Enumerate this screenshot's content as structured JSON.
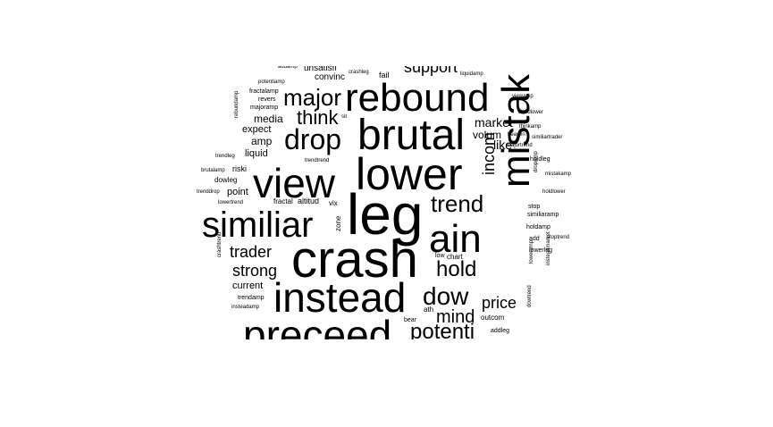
{
  "word_cloud": {
    "words": [
      {
        "text": "leg",
        "size": 64
      },
      {
        "text": "crash",
        "size": 58
      },
      {
        "text": "lower",
        "size": 50
      },
      {
        "text": "brutal",
        "size": 48
      },
      {
        "text": "view",
        "size": 46
      },
      {
        "text": "instead",
        "size": 46
      },
      {
        "text": "preceed",
        "size": 46
      },
      {
        "text": "rebound",
        "size": 44
      },
      {
        "text": "mistak",
        "size": 44
      },
      {
        "text": "ain",
        "size": 44
      },
      {
        "text": "similiar",
        "size": 40
      },
      {
        "text": "drop",
        "size": 32
      },
      {
        "text": "dow",
        "size": 28
      },
      {
        "text": "major",
        "size": 26
      },
      {
        "text": "trend",
        "size": 26
      },
      {
        "text": "hold",
        "size": 24
      },
      {
        "text": "potenti",
        "size": 24
      },
      {
        "text": "think",
        "size": 22
      },
      {
        "text": "mind",
        "size": 20
      },
      {
        "text": "incom",
        "size": 18
      },
      {
        "text": "trader",
        "size": 18
      },
      {
        "text": "strong",
        "size": 18
      },
      {
        "text": "price",
        "size": 18
      },
      {
        "text": "support",
        "size": 18
      },
      {
        "text": "market",
        "size": 14
      },
      {
        "text": "like",
        "size": 14
      },
      {
        "text": "volum",
        "size": 12
      },
      {
        "text": "media",
        "size": 12
      },
      {
        "text": "amp",
        "size": 12
      },
      {
        "text": "expect",
        "size": 11
      },
      {
        "text": "liquid",
        "size": 11
      },
      {
        "text": "point",
        "size": 11
      },
      {
        "text": "current",
        "size": 11
      },
      {
        "text": "convinc",
        "size": 10
      },
      {
        "text": "unsatisfi",
        "size": 10
      },
      {
        "text": "fail",
        "size": 9
      },
      {
        "text": "altitud",
        "size": 9
      },
      {
        "text": "riski",
        "size": 9
      },
      {
        "text": "dowleg",
        "size": 8
      },
      {
        "text": "fractal",
        "size": 8
      },
      {
        "text": "vix",
        "size": 8
      },
      {
        "text": "zone",
        "size": 8
      },
      {
        "text": "chart",
        "size": 8
      },
      {
        "text": "low",
        "size": 7
      },
      {
        "text": "outcom",
        "size": 8
      },
      {
        "text": "ath",
        "size": 8
      },
      {
        "text": "bear",
        "size": 7
      },
      {
        "text": "addleg",
        "size": 7
      },
      {
        "text": "majoramp",
        "size": 7
      },
      {
        "text": "revers",
        "size": 7
      },
      {
        "text": "fractalamp",
        "size": 7
      },
      {
        "text": "potentiamp",
        "size": 6
      },
      {
        "text": "crashleg",
        "size": 6
      },
      {
        "text": "liquidamp",
        "size": 6
      },
      {
        "text": "viewamp",
        "size": 6
      },
      {
        "text": "trendlower",
        "size": 6
      },
      {
        "text": "thinkamp",
        "size": 6
      },
      {
        "text": "heaven",
        "size": 6
      },
      {
        "text": "majortrend",
        "size": 6
      },
      {
        "text": "similiartrader",
        "size": 6
      },
      {
        "text": "holdleg",
        "size": 7
      },
      {
        "text": "mistakamp",
        "size": 6
      },
      {
        "text": "holdlower",
        "size": 6
      },
      {
        "text": "dropamp",
        "size": 6
      },
      {
        "text": "stop",
        "size": 7
      },
      {
        "text": "similiaramp",
        "size": 7
      },
      {
        "text": "holdamp",
        "size": 7
      },
      {
        "text": "add",
        "size": 7
      },
      {
        "text": "stoptrend",
        "size": 6
      },
      {
        "text": "lowerleg",
        "size": 7
      },
      {
        "text": "loweramp",
        "size": 6
      },
      {
        "text": "insteadmarket",
        "size": 6
      },
      {
        "text": "dowtrend",
        "size": 6
      },
      {
        "text": "trendamp",
        "size": 7
      },
      {
        "text": "insteadamp",
        "size": 6
      },
      {
        "text": "crashtrend",
        "size": 6
      },
      {
        "text": "trenddrop",
        "size": 6
      },
      {
        "text": "lowertrend",
        "size": 6
      },
      {
        "text": "brutalamp",
        "size": 6
      },
      {
        "text": "trendleg",
        "size": 6
      },
      {
        "text": "rebundamp",
        "size": 6
      },
      {
        "text": "trendtrend",
        "size": 6
      },
      {
        "text": "sit",
        "size": 6
      },
      {
        "text": "addamp",
        "size": 6
      }
    ]
  }
}
